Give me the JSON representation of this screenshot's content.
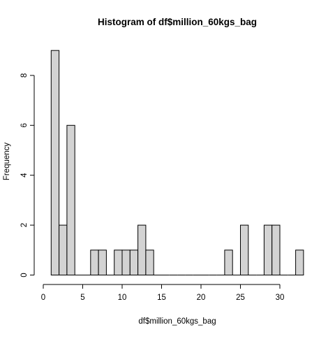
{
  "chart_data": {
    "type": "bar",
    "title": "Histogram of df$million_60kgs_bag",
    "xlabel": "df$million_60kgs_bag",
    "ylabel": "Frequency",
    "bins": [
      {
        "x0": 1,
        "x1": 2,
        "count": 9
      },
      {
        "x0": 2,
        "x1": 3,
        "count": 2
      },
      {
        "x0": 3,
        "x1": 4,
        "count": 6
      },
      {
        "x0": 4,
        "x1": 5,
        "count": 0
      },
      {
        "x0": 5,
        "x1": 6,
        "count": 0
      },
      {
        "x0": 6,
        "x1": 7,
        "count": 1
      },
      {
        "x0": 7,
        "x1": 8,
        "count": 1
      },
      {
        "x0": 8,
        "x1": 9,
        "count": 0
      },
      {
        "x0": 9,
        "x1": 10,
        "count": 1
      },
      {
        "x0": 10,
        "x1": 11,
        "count": 1
      },
      {
        "x0": 11,
        "x1": 12,
        "count": 1
      },
      {
        "x0": 12,
        "x1": 13,
        "count": 2
      },
      {
        "x0": 13,
        "x1": 14,
        "count": 1
      },
      {
        "x0": 14,
        "x1": 15,
        "count": 0
      },
      {
        "x0": 15,
        "x1": 16,
        "count": 0
      },
      {
        "x0": 16,
        "x1": 17,
        "count": 0
      },
      {
        "x0": 17,
        "x1": 18,
        "count": 0
      },
      {
        "x0": 18,
        "x1": 19,
        "count": 0
      },
      {
        "x0": 19,
        "x1": 20,
        "count": 0
      },
      {
        "x0": 20,
        "x1": 21,
        "count": 0
      },
      {
        "x0": 21,
        "x1": 22,
        "count": 0
      },
      {
        "x0": 22,
        "x1": 23,
        "count": 0
      },
      {
        "x0": 23,
        "x1": 24,
        "count": 1
      },
      {
        "x0": 24,
        "x1": 25,
        "count": 0
      },
      {
        "x0": 25,
        "x1": 26,
        "count": 2
      },
      {
        "x0": 26,
        "x1": 27,
        "count": 0
      },
      {
        "x0": 27,
        "x1": 28,
        "count": 0
      },
      {
        "x0": 28,
        "x1": 29,
        "count": 2
      },
      {
        "x0": 29,
        "x1": 30,
        "count": 2
      },
      {
        "x0": 30,
        "x1": 31,
        "count": 0
      },
      {
        "x0": 31,
        "x1": 32,
        "count": 0
      },
      {
        "x0": 32,
        "x1": 33,
        "count": 1
      }
    ],
    "xticks": [
      0,
      5,
      10,
      15,
      20,
      25,
      30
    ],
    "yticks": [
      0,
      2,
      4,
      6,
      8
    ],
    "xlim": [
      0,
      33
    ],
    "ylim": [
      0,
      9
    ],
    "bar_color": "#d3d3d3",
    "edge_color": "#000000",
    "grid": false,
    "legend": "none"
  }
}
